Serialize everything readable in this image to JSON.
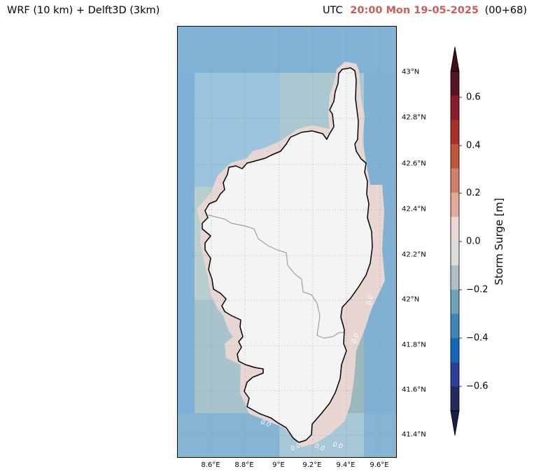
{
  "header": {
    "left_title": "WRF (10 km) + Delft3D (3km)",
    "utc_label": "UTC",
    "time": "20:00 Mon 19-05-2025",
    "lead": "(00+68)",
    "time_color": "#cd5c5c"
  },
  "map": {
    "region": "Corsica",
    "land_color": "#f4f4f4",
    "coastline_color": "#000000",
    "border_color": "#a0a0a0",
    "sea_color": "#7fb1d6",
    "near_coast_color": "#e8d6d2",
    "contour_labels": [
      "0.0",
      "0.0",
      "0.0",
      "0.0",
      "0.0",
      "0.0"
    ],
    "lat_ticks": [
      "43°N",
      "42.8°N",
      "42.6°N",
      "42.4°N",
      "42.2°N",
      "42°N",
      "41.8°N",
      "41.6°N",
      "41.4°N"
    ],
    "lon_ticks": [
      "8.6°E",
      "8.8°E",
      "9°E",
      "9.2°E",
      "9.4°E",
      "9.6°E"
    ]
  },
  "colorbar": {
    "label": "Storm Surge [m]",
    "ticks": [
      "0.6",
      "0.4",
      "0.2",
      "0.0",
      "−0.2",
      "−0.4",
      "−0.6"
    ],
    "range": [
      -0.7,
      0.7
    ],
    "levels_top_to_bottom": [
      "#561520",
      "#8b1a2c",
      "#a83028",
      "#c0573c",
      "#d08069",
      "#dfab98",
      "#e9d8d4",
      "#dcdcdc",
      "#b0bec6",
      "#6da3b8",
      "#3e86b4",
      "#1566bb",
      "#2d3f99",
      "#232a5c"
    ],
    "extend_top_color": "#3d0e16",
    "extend_bottom_color": "#1b1f48"
  }
}
